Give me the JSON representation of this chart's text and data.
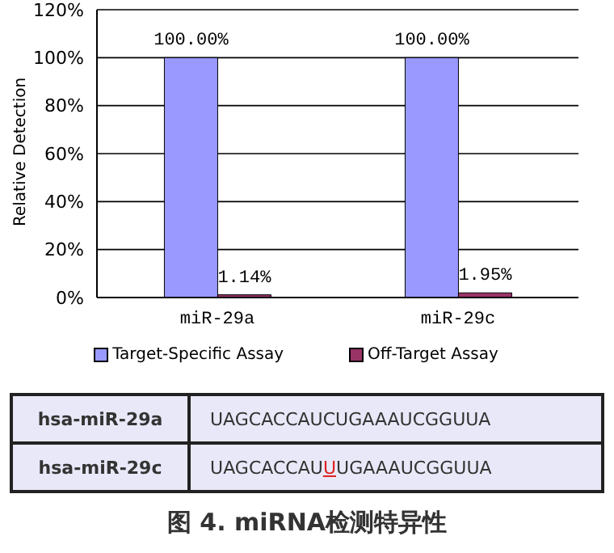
{
  "chart_data": {
    "type": "bar",
    "title": "图 4. miRNA检测特异性",
    "ylabel": "Relative Detection",
    "categories": [
      "miR-29a",
      "miR-29c"
    ],
    "series": [
      {
        "name": "Target-Specific Assay",
        "color": "#9999ff",
        "values": [
          100,
          100
        ],
        "value_labels": [
          "100.00%",
          "100.00%"
        ]
      },
      {
        "name": "Off-Target Assay",
        "color": "#993366",
        "values": [
          1.14,
          1.95
        ],
        "value_labels": [
          "1.14%",
          "1.95%"
        ]
      }
    ],
    "ylim": [
      0,
      120
    ],
    "yticks": [
      {
        "value": 0,
        "label": "0%"
      },
      {
        "value": 20,
        "label": "20%"
      },
      {
        "value": 40,
        "label": "40%"
      },
      {
        "value": 60,
        "label": "60%"
      },
      {
        "value": 80,
        "label": "80%"
      },
      {
        "value": 100,
        "label": "100%"
      },
      {
        "value": 120,
        "label": "120%"
      }
    ],
    "grid": "y",
    "legend": "bottom",
    "annotations": [
      "hsa-miR-29a",
      "UAGCACCAUCUGAAAUCGGUUA",
      "hsa-miR-29c",
      "UAGCACCAUUUGAAAUCGGUUA"
    ]
  }
}
